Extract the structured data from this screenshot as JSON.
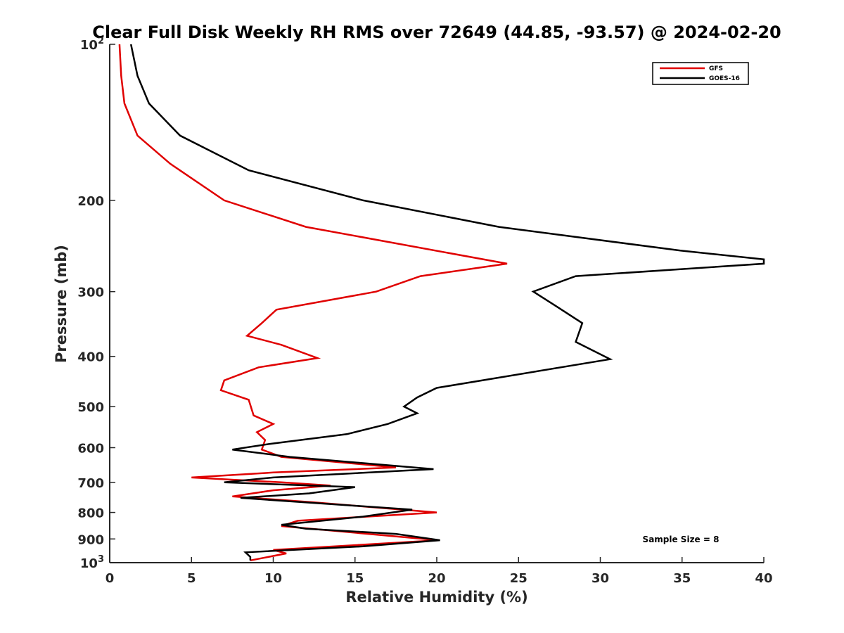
{
  "chart_data": {
    "type": "line",
    "title": "Clear Full Disk Weekly RH RMS over 72649 (44.85, -93.57) @ 2024-02-20",
    "xlabel": "Relative Humidity (%)",
    "ylabel": "Pressure (mb)",
    "xlim": [
      0,
      40
    ],
    "ylim": [
      100,
      1000
    ],
    "y_scale": "log",
    "y_reversed": true,
    "x_ticks": [
      0,
      5,
      10,
      15,
      20,
      25,
      30,
      35,
      40
    ],
    "x_tick_labels": [
      "0",
      "5",
      "10",
      "15",
      "20",
      "25",
      "30",
      "35",
      "40"
    ],
    "y_ticks": [
      100,
      200,
      300,
      400,
      500,
      600,
      700,
      800,
      900,
      1000
    ],
    "y_tick_labels": [
      "10^2",
      "200",
      "300",
      "400",
      "500",
      "600",
      "700",
      "800",
      "900",
      "10^3"
    ],
    "grid": false,
    "legend_position": "top-right",
    "annotation": "Sample Size = 8",
    "series": [
      {
        "name": "GFS",
        "color": "#e00000",
        "points": [
          [
            0.6,
            100
          ],
          [
            0.7,
            115
          ],
          [
            0.9,
            130
          ],
          [
            1.7,
            150
          ],
          [
            3.7,
            170
          ],
          [
            7.0,
            200
          ],
          [
            12.0,
            225
          ],
          [
            24.3,
            265
          ],
          [
            19.0,
            280
          ],
          [
            16.3,
            300
          ],
          [
            10.2,
            325
          ],
          [
            9.3,
            345
          ],
          [
            8.4,
            365
          ],
          [
            10.5,
            380
          ],
          [
            12.7,
            403
          ],
          [
            9.1,
            420
          ],
          [
            7.0,
            445
          ],
          [
            6.8,
            465
          ],
          [
            8.5,
            485
          ],
          [
            8.8,
            520
          ],
          [
            10.0,
            540
          ],
          [
            9.0,
            560
          ],
          [
            9.5,
            580
          ],
          [
            9.3,
            605
          ],
          [
            10.5,
            625
          ],
          [
            17.5,
            655
          ],
          [
            10.0,
            670
          ],
          [
            5.0,
            685
          ],
          [
            10.5,
            700
          ],
          [
            13.5,
            710
          ],
          [
            10.0,
            725
          ],
          [
            7.5,
            745
          ],
          [
            12.5,
            765
          ],
          [
            20.0,
            800
          ],
          [
            11.5,
            830
          ],
          [
            10.5,
            850
          ],
          [
            20.1,
            905
          ],
          [
            10.0,
            945
          ],
          [
            10.8,
            960
          ],
          [
            8.6,
            990
          ]
        ]
      },
      {
        "name": "GOES-16",
        "color": "#000000",
        "points": [
          [
            1.3,
            100
          ],
          [
            1.7,
            115
          ],
          [
            2.4,
            130
          ],
          [
            4.3,
            150
          ],
          [
            8.5,
            175
          ],
          [
            15.5,
            200
          ],
          [
            23.8,
            225
          ],
          [
            34.9,
            250
          ],
          [
            40.0,
            260
          ],
          [
            40.0,
            265
          ],
          [
            28.5,
            280
          ],
          [
            25.9,
            300
          ],
          [
            27.3,
            320
          ],
          [
            28.9,
            345
          ],
          [
            28.5,
            375
          ],
          [
            30.6,
            405
          ],
          [
            20.0,
            460
          ],
          [
            18.8,
            480
          ],
          [
            18.0,
            500
          ],
          [
            18.8,
            515
          ],
          [
            17.0,
            540
          ],
          [
            14.5,
            565
          ],
          [
            9.8,
            590
          ],
          [
            7.5,
            605
          ],
          [
            11.0,
            625
          ],
          [
            19.8,
            660
          ],
          [
            10.0,
            685
          ],
          [
            7.0,
            700
          ],
          [
            15.0,
            715
          ],
          [
            12.2,
            735
          ],
          [
            8.0,
            750
          ],
          [
            18.5,
            790
          ],
          [
            15.5,
            815
          ],
          [
            10.5,
            845
          ],
          [
            12.0,
            860
          ],
          [
            17.5,
            880
          ],
          [
            20.2,
            905
          ],
          [
            15.5,
            930
          ],
          [
            8.3,
            955
          ],
          [
            8.6,
            975
          ],
          [
            8.6,
            990
          ]
        ]
      }
    ]
  }
}
